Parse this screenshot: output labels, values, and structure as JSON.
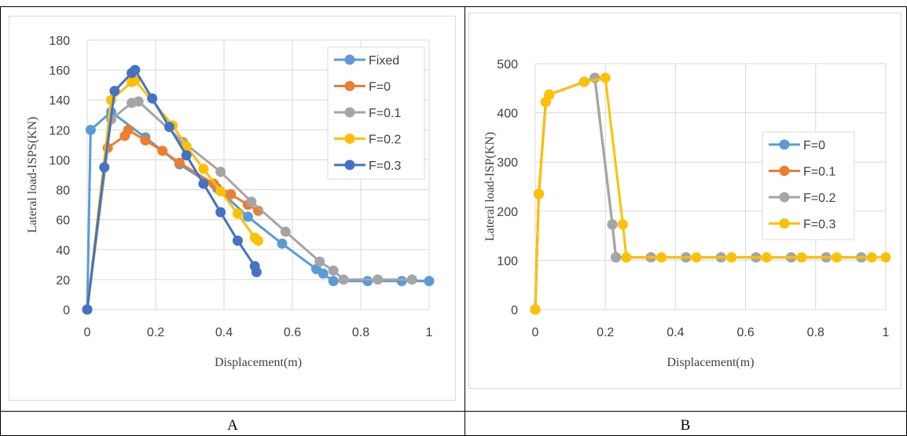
{
  "captions": [
    "A",
    "B"
  ],
  "chart_data": [
    {
      "type": "scatter",
      "xlabel": "Displacement(m)",
      "ylabel": "Lateral load-ISPS(KN)",
      "xlim": [
        0,
        1
      ],
      "ylim": [
        0,
        180
      ],
      "xticks": [
        "0",
        "0.2",
        "0.4",
        "0.6",
        "0.8",
        "1"
      ],
      "yticks": [
        "0",
        "20",
        "40",
        "60",
        "80",
        "100",
        "120",
        "140",
        "160",
        "180"
      ],
      "grid": true,
      "legend_position": "right",
      "series": [
        {
          "name": "Fixed",
          "color": "#5B9BD5",
          "points": [
            [
              0,
              0
            ],
            [
              0.01,
              120
            ],
            [
              0.07,
              132
            ],
            [
              0.17,
              115
            ],
            [
              0.27,
              97
            ],
            [
              0.38,
              81
            ],
            [
              0.47,
              62
            ],
            [
              0.57,
              44
            ],
            [
              0.67,
              27
            ],
            [
              0.69,
              24
            ],
            [
              0.72,
              19
            ],
            [
              0.82,
              19
            ],
            [
              0.92,
              19
            ],
            [
              1.0,
              19
            ]
          ]
        },
        {
          "name": "F=0",
          "color": "#ED7D31",
          "points": [
            [
              0,
              0
            ],
            [
              0.06,
              108
            ],
            [
              0.11,
              116
            ],
            [
              0.12,
              120
            ],
            [
              0.17,
              113
            ],
            [
              0.22,
              106
            ],
            [
              0.27,
              98
            ],
            [
              0.37,
              84
            ],
            [
              0.42,
              77
            ],
            [
              0.47,
              70
            ],
            [
              0.5,
              66
            ]
          ]
        },
        {
          "name": "F=0.1",
          "color": "#A5A5A5",
          "points": [
            [
              0,
              0
            ],
            [
              0.07,
              127
            ],
            [
              0.13,
              138
            ],
            [
              0.15,
              139
            ],
            [
              0.28,
              112
            ],
            [
              0.39,
              92
            ],
            [
              0.48,
              72
            ],
            [
              0.58,
              52
            ],
            [
              0.68,
              32
            ],
            [
              0.72,
              26
            ],
            [
              0.75,
              20
            ],
            [
              0.85,
              20
            ],
            [
              0.95,
              20
            ]
          ]
        },
        {
          "name": "F=0.2",
          "color": "#FFC000",
          "points": [
            [
              0,
              0
            ],
            [
              0.07,
              140
            ],
            [
              0.13,
              152
            ],
            [
              0.14,
              153
            ],
            [
              0.25,
              123
            ],
            [
              0.29,
              109
            ],
            [
              0.34,
              94
            ],
            [
              0.39,
              79
            ],
            [
              0.44,
              64
            ],
            [
              0.49,
              48
            ],
            [
              0.5,
              46
            ]
          ]
        },
        {
          "name": "F=0.3",
          "color": "#4472C4",
          "points": [
            [
              0,
              0
            ],
            [
              0.05,
              95
            ],
            [
              0.08,
              146
            ],
            [
              0.13,
              158
            ],
            [
              0.14,
              160
            ],
            [
              0.19,
              141
            ],
            [
              0.24,
              122
            ],
            [
              0.29,
              103
            ],
            [
              0.34,
              84
            ],
            [
              0.39,
              65
            ],
            [
              0.44,
              46
            ],
            [
              0.49,
              29
            ],
            [
              0.495,
              25
            ]
          ]
        }
      ]
    },
    {
      "type": "scatter",
      "xlabel": "Displacement(m)",
      "ylabel": "Lateral load-ISP(KN)",
      "xlim": [
        0,
        1
      ],
      "ylim": [
        0,
        500
      ],
      "xticks": [
        "0",
        "0.2",
        "0.4",
        "0.6",
        "0.8",
        "1"
      ],
      "yticks": [
        "0",
        "100",
        "200",
        "300",
        "400",
        "500"
      ],
      "grid": true,
      "legend_position": "right",
      "series": [
        {
          "name": "F=0",
          "color": "#5B9BD5",
          "points": [
            [
              0,
              0
            ],
            [
              0.01,
              235
            ],
            [
              0.03,
              422
            ],
            [
              0.04,
              437
            ],
            [
              0.14,
              463
            ],
            [
              0.17,
              471
            ],
            [
              0.22,
              173
            ],
            [
              0.23,
              106
            ],
            [
              0.33,
              106
            ],
            [
              0.43,
              106
            ],
            [
              0.53,
              106
            ],
            [
              0.63,
              106
            ],
            [
              0.73,
              106
            ],
            [
              0.83,
              106
            ],
            [
              0.93,
              106
            ]
          ]
        },
        {
          "name": "F=0.1",
          "color": "#ED7D31",
          "points": [
            [
              0,
              0
            ],
            [
              0.01,
              235
            ],
            [
              0.03,
              422
            ],
            [
              0.04,
              437
            ],
            [
              0.14,
              463
            ],
            [
              0.17,
              471
            ],
            [
              0.22,
              173
            ],
            [
              0.23,
              106
            ],
            [
              0.33,
              106
            ],
            [
              0.43,
              106
            ],
            [
              0.53,
              106
            ],
            [
              0.63,
              106
            ],
            [
              0.73,
              106
            ],
            [
              0.83,
              106
            ],
            [
              0.93,
              106
            ]
          ]
        },
        {
          "name": "F=0.2",
          "color": "#A5A5A5",
          "points": [
            [
              0,
              0
            ],
            [
              0.01,
              235
            ],
            [
              0.03,
              422
            ],
            [
              0.04,
              437
            ],
            [
              0.14,
              463
            ],
            [
              0.17,
              471
            ],
            [
              0.22,
              173
            ],
            [
              0.23,
              106
            ],
            [
              0.33,
              106
            ],
            [
              0.43,
              106
            ],
            [
              0.53,
              106
            ],
            [
              0.63,
              106
            ],
            [
              0.73,
              106
            ],
            [
              0.83,
              106
            ],
            [
              0.93,
              106
            ]
          ]
        },
        {
          "name": "F=0.3",
          "color": "#FFC000",
          "points": [
            [
              0,
              0
            ],
            [
              0.01,
              235
            ],
            [
              0.03,
              422
            ],
            [
              0.04,
              437
            ],
            [
              0.14,
              463
            ],
            [
              0.2,
              471
            ],
            [
              0.25,
              173
            ],
            [
              0.26,
              106
            ],
            [
              0.36,
              106
            ],
            [
              0.46,
              106
            ],
            [
              0.56,
              106
            ],
            [
              0.66,
              106
            ],
            [
              0.76,
              106
            ],
            [
              0.86,
              106
            ],
            [
              0.96,
              106
            ],
            [
              1.0,
              106
            ]
          ]
        }
      ]
    }
  ]
}
